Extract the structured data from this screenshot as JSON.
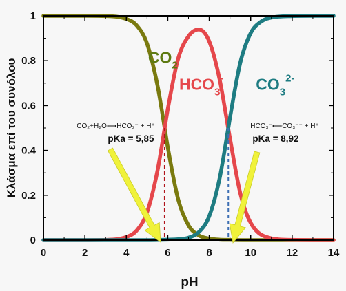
{
  "chart_data": {
    "type": "line",
    "title": "",
    "xlabel": "pH",
    "ylabel": "Κλάσμα επί του συνόλου",
    "xlim": [
      0,
      14
    ],
    "ylim": [
      0,
      1
    ],
    "x_ticks": [
      "0",
      "2",
      "4",
      "6",
      "8",
      "10",
      "12",
      "14"
    ],
    "y_ticks": [
      "0",
      "0.2",
      "0.4",
      "0.6",
      "0.8",
      "1"
    ],
    "grid": false,
    "pKa1": 5.85,
    "pKa2": 8.92,
    "series": [
      {
        "name": "CO2",
        "color": "#7a7a0f",
        "x": [
          0,
          1,
          2,
          3,
          4,
          4.5,
          5,
          5.5,
          5.85,
          6,
          6.5,
          7,
          7.5,
          8,
          8.5,
          9,
          10,
          11,
          12,
          13,
          14
        ],
        "values": [
          1.0,
          1.0,
          1.0,
          0.999,
          0.986,
          0.957,
          0.876,
          0.691,
          0.5,
          0.414,
          0.182,
          0.066,
          0.021,
          0.007,
          0.002,
          0.001,
          0.0,
          0.0,
          0.0,
          0.0,
          0.0
        ]
      },
      {
        "name": "HCO3-",
        "color": "#e5474b",
        "x": [
          0,
          1,
          2,
          3,
          4,
          4.5,
          5,
          5.5,
          5.85,
          6,
          6.5,
          7,
          7.5,
          8,
          8.5,
          9,
          9.5,
          10,
          11,
          12,
          13,
          14
        ],
        "values": [
          0.0,
          0.0,
          0.0,
          0.001,
          0.014,
          0.043,
          0.124,
          0.308,
          0.499,
          0.584,
          0.809,
          0.909,
          0.939,
          0.886,
          0.717,
          0.454,
          0.208,
          0.077,
          0.008,
          0.001,
          0.0,
          0.0
        ]
      },
      {
        "name": "CO3 2-",
        "color": "#1e7c82",
        "x": [
          0,
          1,
          2,
          3,
          4,
          5,
          6,
          6.5,
          7,
          7.5,
          8,
          8.5,
          8.92,
          9,
          9.5,
          10,
          10.5,
          11,
          12,
          13,
          14
        ],
        "values": [
          0.0,
          0.0,
          0.0,
          0.0,
          0.0,
          0.0,
          0.002,
          0.004,
          0.011,
          0.036,
          0.107,
          0.275,
          0.5,
          0.545,
          0.792,
          0.923,
          0.974,
          0.992,
          0.999,
          1.0,
          1.0
        ]
      }
    ],
    "series_labels": [
      {
        "main": "CO",
        "sub": "2",
        "sup": "",
        "color": "#5e7a12",
        "x": 5.05,
        "y": 0.79
      },
      {
        "main": "HCO",
        "sub": "3",
        "sup": "-",
        "color": "#e5474b",
        "x": 6.55,
        "y": 0.67
      },
      {
        "main": "CO",
        "sub": "3",
        "sup": "2-",
        "color": "#1e7c82",
        "x": 10.25,
        "y": 0.67
      }
    ],
    "annotations": [
      {
        "id": "pka1",
        "equation": "CO₂+H₂O⟷HCO₃⁻ + H⁺",
        "pka_label": "pKa = 5,85",
        "arrow_color": "#f0f23a",
        "drop_line_color": "#b0141c",
        "pka": 5.85
      },
      {
        "id": "pka2",
        "equation": "HCO₃⁻⟷CO₃⁻⁻ + H⁺",
        "pka_label": "pKa = 8,92",
        "arrow_color": "#f0f23a",
        "drop_line_color": "#3d6fb3",
        "pka": 8.92
      }
    ]
  }
}
